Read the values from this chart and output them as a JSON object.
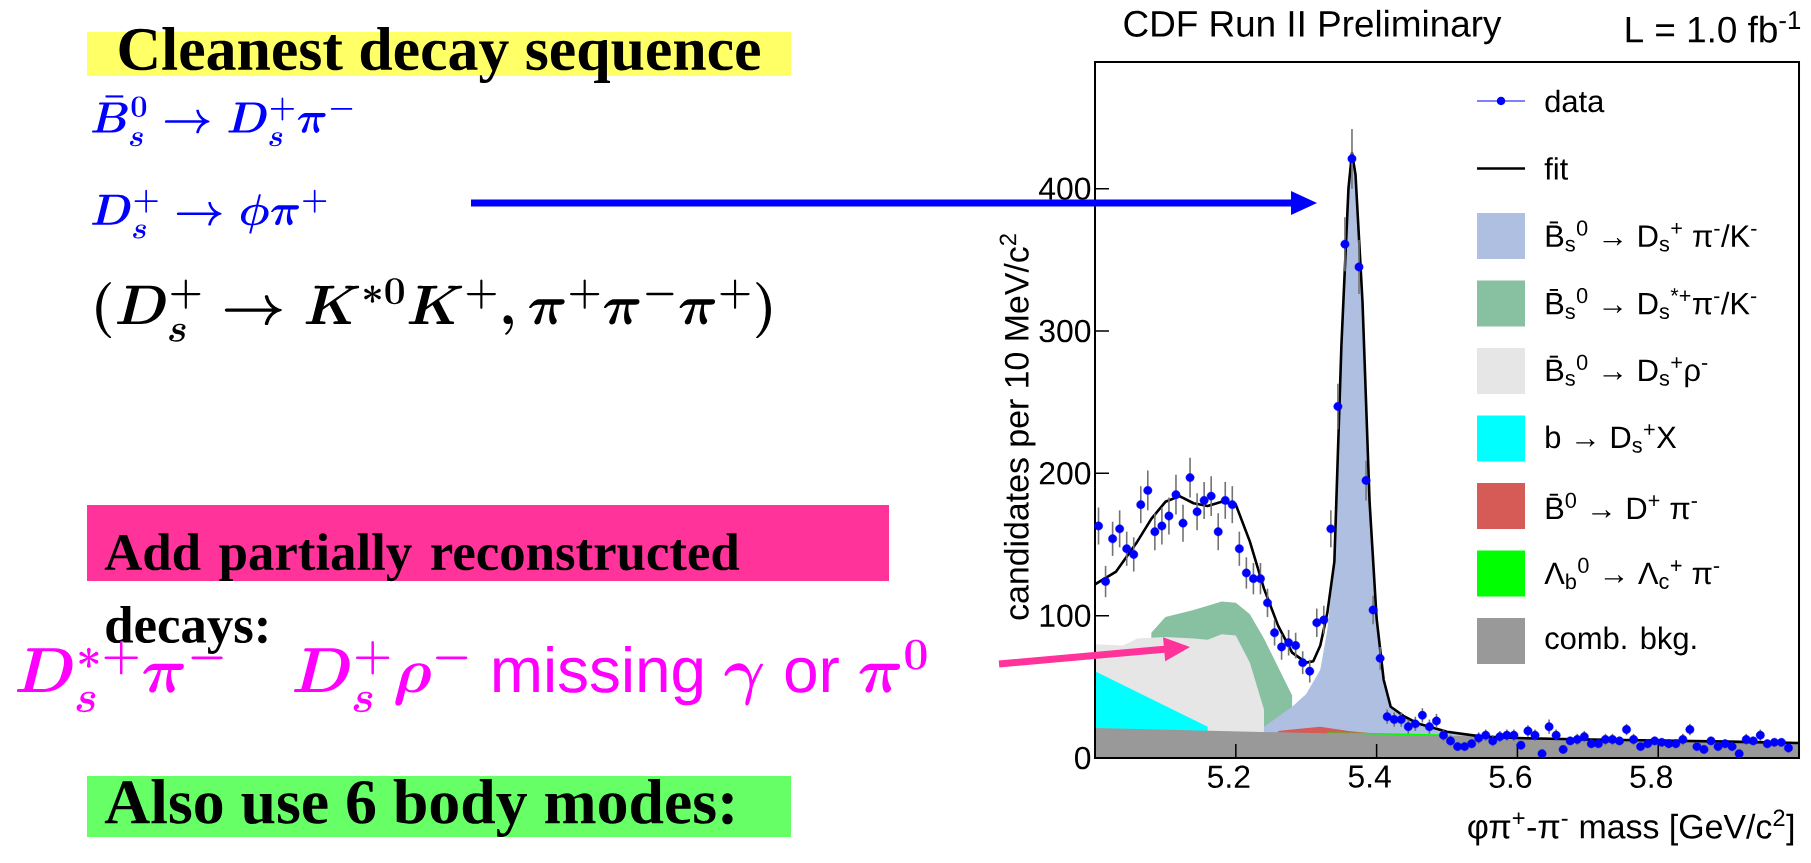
{
  "chart_data": {
    "type": "area",
    "title": "CDF Run II Preliminary",
    "xlabel": "φπ$^{+}$-π$^{-}$ mass [GeV/c$^{2}$]",
    "ylabel": "candidates per 10 MeV/c$^{2}$",
    "xlim": [
      5.0,
      6.0
    ],
    "ylim": [
      0,
      489
    ],
    "xticks": [
      5.2,
      5.4,
      5.6,
      5.8
    ],
    "yticks": [
      0,
      100,
      200,
      300,
      400
    ],
    "legend": "top right",
    "series": [
      {
        "name": "B̄$_{s}$$^{0}$ → D$_{s}$$^{*+}$π$^{-}$/K$^{-}$",
        "color": "#88c0a2",
        "x": [
          5.08,
          5.1,
          5.14,
          5.18,
          5.2,
          5.22,
          5.24,
          5.26,
          5.28
        ],
        "values": [
          88,
          99,
          104,
          110,
          109,
          101,
          84,
          64,
          44
        ]
      },
      {
        "name": "B̄$_{s}$$^{0}$ → D$_{s}$$^{+}$ρ$^{-}$",
        "color": "#e6e6e6",
        "x": [
          5.0,
          5.04,
          5.06,
          5.1,
          5.14,
          5.16,
          5.18,
          5.2,
          5.22,
          5.24
        ],
        "values": [
          80,
          79,
          84,
          85,
          84,
          83,
          87,
          86,
          67,
          34
        ]
      },
      {
        "name": "b → D$_{s}$$^{+}$X",
        "color": "#00ffff",
        "x": [
          5.0,
          5.16
        ],
        "values": [
          61,
          22
        ]
      },
      {
        "name": "B̄$_{s}$$^{0}$ → D$_{s}$$^{+}$ π$^{-}$/K$^{-}$",
        "color": "#aebfe2",
        "x": [
          5.24,
          5.28,
          5.3,
          5.32,
          5.33,
          5.34,
          5.35,
          5.36,
          5.365,
          5.37,
          5.38,
          5.39,
          5.4,
          5.41,
          5.42,
          5.44,
          5.46,
          5.5,
          5.55
        ],
        "values": [
          22,
          36,
          45,
          62,
          90,
          137,
          290,
          400,
          425,
          410,
          320,
          180,
          98,
          55,
          36,
          29,
          24,
          18.5,
          15.5
        ]
      },
      {
        "name": "B̄$^{0}$ → D$^{+}$ π$^{-}$",
        "color": "#d65a55",
        "x": [
          5.26,
          5.28,
          5.32,
          5.36,
          5.4
        ],
        "values": [
          19,
          20,
          22,
          19,
          17
        ]
      },
      {
        "name": "Λ$_{b}$$^{0}$ → Λ$_{c}$$^{+}$ π$^{-}$",
        "color": "#00ff00",
        "x": [
          5.33,
          5.4,
          5.5
        ],
        "values": [
          18,
          17.5,
          16.5
        ]
      },
      {
        "name": "comb. bkg.",
        "color": "#999999",
        "x": [
          5.0,
          5.4,
          6.0
        ],
        "values": [
          21,
          16.5,
          11
        ]
      },
      {
        "name": "fit",
        "type": "line",
        "color": "#000000",
        "x": [
          5.0,
          5.03,
          5.06,
          5.08,
          5.1,
          5.12,
          5.14,
          5.16,
          5.18,
          5.2,
          5.22,
          5.24,
          5.26,
          5.28,
          5.3,
          5.31,
          5.32,
          5.33,
          5.34,
          5.35,
          5.36,
          5.365,
          5.37,
          5.38,
          5.39,
          5.4,
          5.41,
          5.42,
          5.44,
          5.46,
          5.5,
          5.55,
          5.6,
          5.7,
          5.8,
          5.9,
          6.0
        ],
        "values": [
          122,
          131,
          152,
          168,
          180,
          184,
          179,
          177,
          180,
          178,
          152,
          119,
          93,
          74,
          67,
          68,
          79,
          102,
          138,
          290,
          400,
          425,
          410,
          320,
          180,
          98,
          55,
          36,
          29,
          24,
          18.5,
          15,
          14,
          13,
          12.3,
          11.5,
          10.5
        ]
      },
      {
        "name": "data",
        "type": "scatter",
        "color": "#0000ff",
        "marker": "circle",
        "x": [
          5.005,
          5.015,
          5.025,
          5.035,
          5.045,
          5.055,
          5.065,
          5.075,
          5.085,
          5.095,
          5.105,
          5.115,
          5.125,
          5.135,
          5.145,
          5.155,
          5.165,
          5.175,
          5.185,
          5.195,
          5.205,
          5.215,
          5.225,
          5.235,
          5.245,
          5.255,
          5.265,
          5.275,
          5.285,
          5.295,
          5.305,
          5.315,
          5.325,
          5.335,
          5.345,
          5.355,
          5.365,
          5.375,
          5.385,
          5.395,
          5.405,
          5.415,
          5.425,
          5.435,
          5.445,
          5.455,
          5.465,
          5.475,
          5.485,
          5.495,
          5.505,
          5.515,
          5.525,
          5.535,
          5.545,
          5.555,
          5.565,
          5.575,
          5.585,
          5.595,
          5.605,
          5.615,
          5.625,
          5.635,
          5.645,
          5.655,
          5.665,
          5.675,
          5.685,
          5.695,
          5.705,
          5.715,
          5.725,
          5.735,
          5.745,
          5.755,
          5.765,
          5.775,
          5.785,
          5.795,
          5.805,
          5.815,
          5.825,
          5.835,
          5.845,
          5.855,
          5.865,
          5.875,
          5.885,
          5.895,
          5.905,
          5.915,
          5.925,
          5.935,
          5.945,
          5.955,
          5.965,
          5.975,
          5.985
        ],
        "values": [
          163,
          124,
          154,
          161,
          147,
          143,
          178,
          188,
          159,
          163,
          170,
          185,
          165,
          197,
          173,
          181,
          184,
          159,
          181,
          178,
          147,
          130,
          126,
          126,
          109,
          88,
          78,
          81,
          79,
          67,
          61,
          95,
          97,
          161,
          247,
          361,
          421,
          345,
          195,
          104,
          70,
          29,
          27,
          27,
          22,
          24,
          30,
          22,
          26,
          16,
          12,
          8,
          8,
          10,
          14,
          16,
          12,
          15,
          16,
          16,
          9,
          19,
          16,
          3,
          22,
          16,
          6,
          12,
          13,
          15,
          10,
          10,
          13,
          13,
          12,
          20,
          13,
          8,
          10,
          12,
          11,
          10,
          10,
          13,
          20,
          8,
          6,
          12,
          8,
          10,
          8,
          3,
          13,
          12,
          16,
          10,
          11,
          11,
          7
        ],
        "errors": [
          13,
          11,
          12,
          13,
          12,
          12,
          13,
          14,
          13,
          13,
          13,
          14,
          13,
          14,
          13,
          13,
          14,
          13,
          13,
          13,
          12,
          11,
          11,
          11,
          10,
          9,
          9,
          9,
          9,
          8,
          8,
          10,
          10,
          13,
          16,
          19,
          21,
          19,
          14,
          10,
          8,
          5,
          5,
          5,
          5,
          5,
          5,
          5,
          5,
          4,
          4,
          3,
          3,
          3,
          4,
          4,
          4,
          4,
          4,
          4,
          3,
          4,
          4,
          2,
          5,
          4,
          2,
          3,
          4,
          4,
          3,
          3,
          4,
          4,
          3,
          4,
          4,
          3,
          3,
          3,
          3,
          3,
          3,
          4,
          4,
          3,
          2,
          3,
          3,
          3,
          3,
          2,
          4,
          3,
          4,
          3,
          3,
          3,
          3
        ]
      }
    ],
    "annotations": [
      "Cleanest decay sequence",
      "\\bar{B}_s^0 \\rightarrow D_s^+\\pi^-",
      "D_s^+ \\rightarrow \\phi\\pi^+",
      "(D_s^+ \\rightarrow K^{*0}K^+, \\pi^+\\pi^-\\pi^+)",
      "Add partially reconstructed decays:",
      "D_s^{*+}\\pi^-\\quad D_s^+\\rho^-\\ \\textsf{missing}\\ \\gamma\\ \\textsf{or}\\ \\pi^0",
      "Also use 6 body modes:",
      "L = 1.0 fb$^{-1}$"
    ]
  }
}
